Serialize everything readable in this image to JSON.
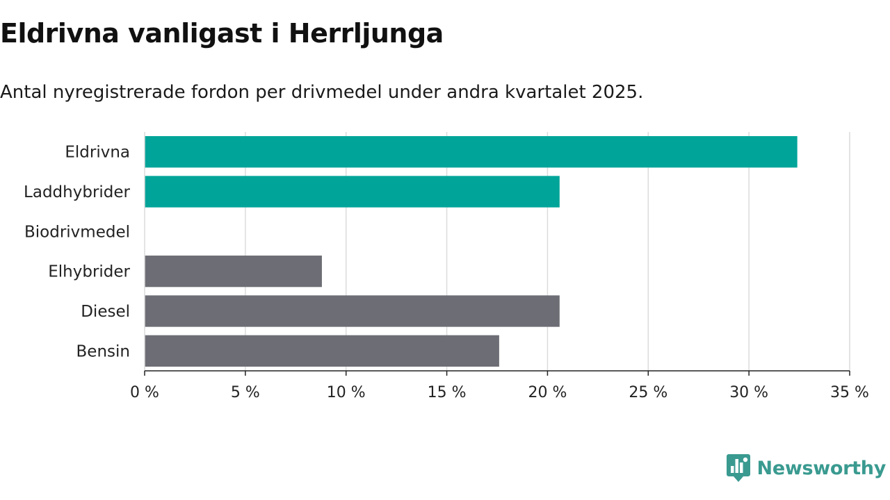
{
  "chart_data": {
    "type": "bar",
    "orientation": "horizontal",
    "title": "Eldrivna vanligast i Herrljunga",
    "subtitle": "Antal nyregistrerade fordon per drivmedel under andra kvartalet 2025.",
    "categories": [
      "Eldrivna",
      "Laddhybrider",
      "Biodrivmedel",
      "Elhybrider",
      "Diesel",
      "Bensin"
    ],
    "values": [
      32.4,
      20.6,
      0,
      8.8,
      20.6,
      17.6
    ],
    "colors": [
      "#00a499",
      "#00a499",
      "#00a499",
      "#6d6e75",
      "#6d6e75",
      "#6d6e75"
    ],
    "xlim": [
      0,
      35
    ],
    "xticks": [
      0,
      5,
      10,
      15,
      20,
      25,
      30,
      35
    ],
    "xtick_labels": [
      "0 %",
      "5 %",
      "10 %",
      "15 %",
      "20 %",
      "25 %",
      "30 %",
      "35 %"
    ],
    "xlabel": "",
    "ylabel": "",
    "grid": "vertical"
  },
  "brand": {
    "name": "Newsworthy",
    "color": "#3a9a90",
    "icon": "bar-chart-logo-icon"
  }
}
